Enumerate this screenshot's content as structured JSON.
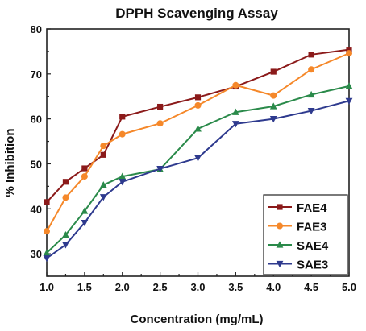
{
  "chart_data": {
    "type": "line",
    "title": "DPPH Scavenging Assay",
    "xlabel": "Concentration (mg/mL)",
    "ylabel": "% Inhibition",
    "xlim": [
      1.0,
      5.0
    ],
    "ylim": [
      25,
      80
    ],
    "xticks": [
      "1.0",
      "1.5",
      "2.0",
      "2.5",
      "3.0",
      "3.5",
      "4.0",
      "4.5",
      "5.0"
    ],
    "yticks": [
      "30",
      "40",
      "50",
      "60",
      "70",
      "80"
    ],
    "grid": false,
    "legend_position": "bottom-right",
    "x": [
      1.0,
      1.25,
      1.5,
      1.75,
      2.0,
      2.5,
      3.0,
      3.5,
      4.0,
      4.5,
      5.0
    ],
    "series": [
      {
        "name": "FAE4",
        "color": "#8b1a1a",
        "marker": "square",
        "values": [
          41.5,
          46.0,
          49.0,
          52.0,
          60.5,
          62.7,
          64.8,
          67.2,
          70.5,
          74.3,
          75.4
        ]
      },
      {
        "name": "FAE3",
        "color": "#f5882a",
        "marker": "circle",
        "values": [
          35.0,
          42.5,
          47.2,
          54.0,
          56.6,
          59.0,
          63.0,
          67.5,
          65.2,
          71.0,
          74.6
        ]
      },
      {
        "name": "SAE4",
        "color": "#2a8a4a",
        "marker": "triangle-up",
        "values": [
          30.2,
          34.2,
          39.5,
          45.3,
          47.2,
          48.8,
          57.8,
          61.5,
          62.8,
          65.4,
          67.3
        ]
      },
      {
        "name": "SAE3",
        "color": "#2e3a8e",
        "marker": "triangle-down",
        "values": [
          29.0,
          32.0,
          36.9,
          42.6,
          46.0,
          48.9,
          51.3,
          58.9,
          60.0,
          61.8,
          64.0
        ]
      }
    ]
  }
}
